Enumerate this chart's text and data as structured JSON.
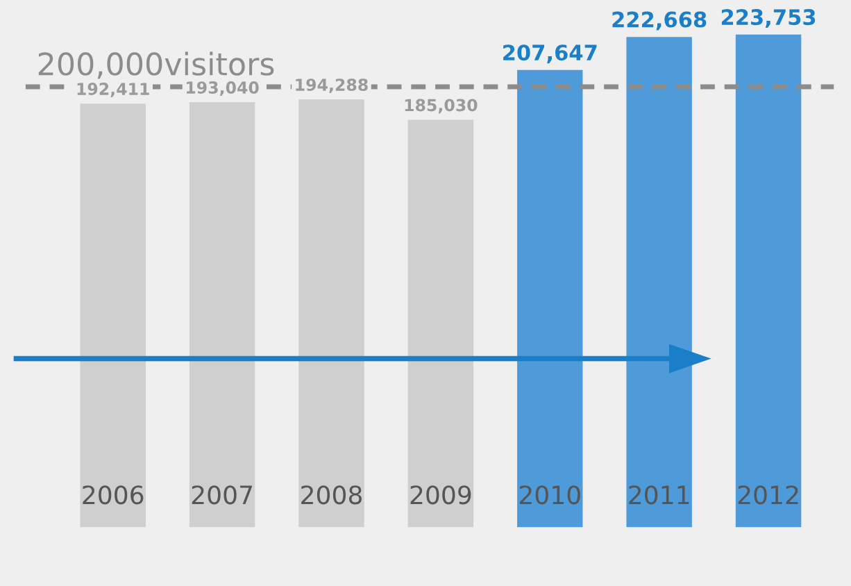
{
  "chart_data": {
    "type": "bar",
    "categories": [
      "2006",
      "2007",
      "2008",
      "2009",
      "2010",
      "2011",
      "2012"
    ],
    "values": [
      192411,
      193040,
      194288,
      185030,
      207647,
      222668,
      223753
    ],
    "colors": [
      "#cfcfcf",
      "#cfcfcf",
      "#cfcfcf",
      "#cfcfcf",
      "#4f9ad8",
      "#4f9ad8",
      "#4f9ad8"
    ],
    "value_labels": [
      "192,411",
      "193,040",
      "194,288",
      "185,030",
      "207,647",
      "222,668",
      "223,753"
    ],
    "tick_labels": "x",
    "grid": false,
    "ref_lines": [
      {
        "axis": "y",
        "value": 200000,
        "label": "200,000visitors",
        "color": "#8c8c8c",
        "line_style": "dashed"
      }
    ]
  }
}
